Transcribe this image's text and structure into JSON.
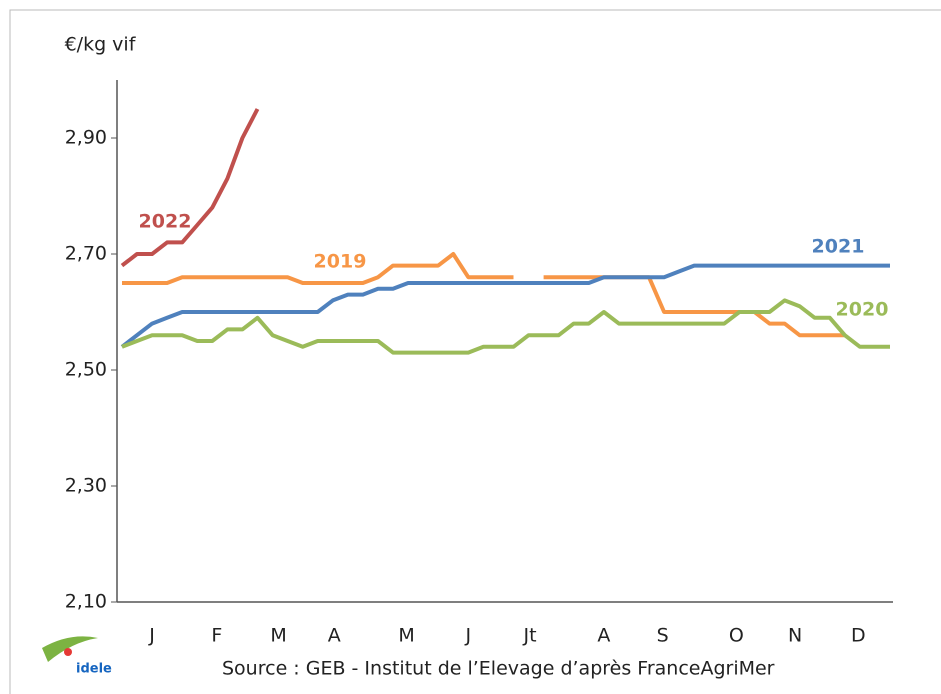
{
  "chart_data": {
    "type": "line",
    "y_label": "€/kg vif",
    "source": "Source : GEB - Institut de l’Elevage d’après FranceAgriMer",
    "logo": "idele",
    "x": [
      1,
      2,
      3,
      4,
      5,
      6,
      7,
      8,
      9,
      10,
      11,
      12,
      13,
      14,
      15,
      16,
      17,
      18,
      19,
      20,
      21,
      22,
      23,
      24,
      25,
      26,
      27,
      28,
      29,
      30,
      31,
      32,
      33,
      34,
      35,
      36,
      37,
      38,
      39,
      40,
      41,
      42,
      43,
      44,
      45,
      46,
      47,
      48,
      49,
      50,
      51,
      52
    ],
    "xlim": [
      0.67,
      52.2
    ],
    "xticks": [
      {
        "value": 3,
        "label": "J"
      },
      {
        "value": 7.3,
        "label": "F"
      },
      {
        "value": 11.4,
        "label": "M"
      },
      {
        "value": 15.1,
        "label": "A"
      },
      {
        "value": 19.9,
        "label": "M"
      },
      {
        "value": 24,
        "label": "J"
      },
      {
        "value": 28.1,
        "label": "Jt"
      },
      {
        "value": 33,
        "label": "A"
      },
      {
        "value": 36.9,
        "label": "S"
      },
      {
        "value": 41.8,
        "label": "O"
      },
      {
        "value": 45.7,
        "label": "N"
      },
      {
        "value": 49.9,
        "label": "D"
      }
    ],
    "ylim": [
      2.1,
      3.0
    ],
    "yticks": [
      {
        "value": 2.1,
        "label": "2,10"
      },
      {
        "value": 2.3,
        "label": "2,30"
      },
      {
        "value": 2.5,
        "label": "2,50"
      },
      {
        "value": 2.7,
        "label": "2,70"
      },
      {
        "value": 2.9,
        "label": "2,90"
      }
    ],
    "series": [
      {
        "name": "2022",
        "color": "#c0504d",
        "values": [
          2.68,
          2.7,
          2.7,
          2.72,
          2.72,
          2.75,
          2.78,
          2.83,
          2.9,
          2.95,
          null,
          null,
          null,
          null,
          null,
          null,
          null,
          null,
          null,
          null,
          null,
          null,
          null,
          null,
          null,
          null,
          null,
          null,
          null,
          null,
          null,
          null,
          null,
          null,
          null,
          null,
          null,
          null,
          null,
          null,
          null,
          null,
          null,
          null,
          null,
          null,
          null,
          null,
          null,
          null,
          null,
          null
        ]
      },
      {
        "name": "2019",
        "color": "#f79646",
        "values": [
          2.65,
          2.65,
          2.65,
          2.65,
          2.66,
          2.66,
          2.66,
          2.66,
          2.66,
          2.66,
          2.66,
          2.66,
          2.65,
          2.65,
          2.65,
          2.65,
          2.65,
          2.66,
          2.68,
          2.68,
          2.68,
          2.68,
          2.7,
          2.66,
          2.66,
          2.66,
          2.66,
          null,
          2.66,
          2.66,
          2.66,
          2.66,
          2.66,
          2.66,
          2.66,
          2.66,
          2.6,
          2.6,
          2.6,
          2.6,
          2.6,
          2.6,
          2.6,
          2.58,
          2.58,
          2.56,
          2.56,
          2.56,
          2.56,
          null,
          null,
          null
        ]
      },
      {
        "name": "2021",
        "color": "#4f81bd",
        "values": [
          2.54,
          2.56,
          2.58,
          2.59,
          2.6,
          2.6,
          2.6,
          2.6,
          2.6,
          2.6,
          2.6,
          2.6,
          2.6,
          2.6,
          2.62,
          2.63,
          2.63,
          2.64,
          2.64,
          2.65,
          2.65,
          2.65,
          2.65,
          2.65,
          2.65,
          2.65,
          2.65,
          2.65,
          2.65,
          2.65,
          2.65,
          2.65,
          2.66,
          2.66,
          2.66,
          2.66,
          2.66,
          2.67,
          2.68,
          2.68,
          2.68,
          2.68,
          2.68,
          2.68,
          2.68,
          2.68,
          2.68,
          2.68,
          2.68,
          2.68,
          2.68,
          2.68
        ]
      },
      {
        "name": "2020",
        "color": "#9bbb59",
        "values": [
          2.54,
          2.55,
          2.56,
          2.56,
          2.56,
          2.55,
          2.55,
          2.57,
          2.57,
          2.59,
          2.56,
          2.55,
          2.54,
          2.55,
          2.55,
          2.55,
          2.55,
          2.55,
          2.53,
          2.53,
          2.53,
          2.53,
          2.53,
          2.53,
          2.54,
          2.54,
          2.54,
          2.56,
          2.56,
          2.56,
          2.58,
          2.58,
          2.6,
          2.58,
          2.58,
          2.58,
          2.58,
          2.58,
          2.58,
          2.58,
          2.58,
          2.6,
          2.6,
          2.6,
          2.62,
          2.61,
          2.59,
          2.59,
          2.56,
          2.54,
          2.54,
          2.54
        ]
      }
    ]
  }
}
